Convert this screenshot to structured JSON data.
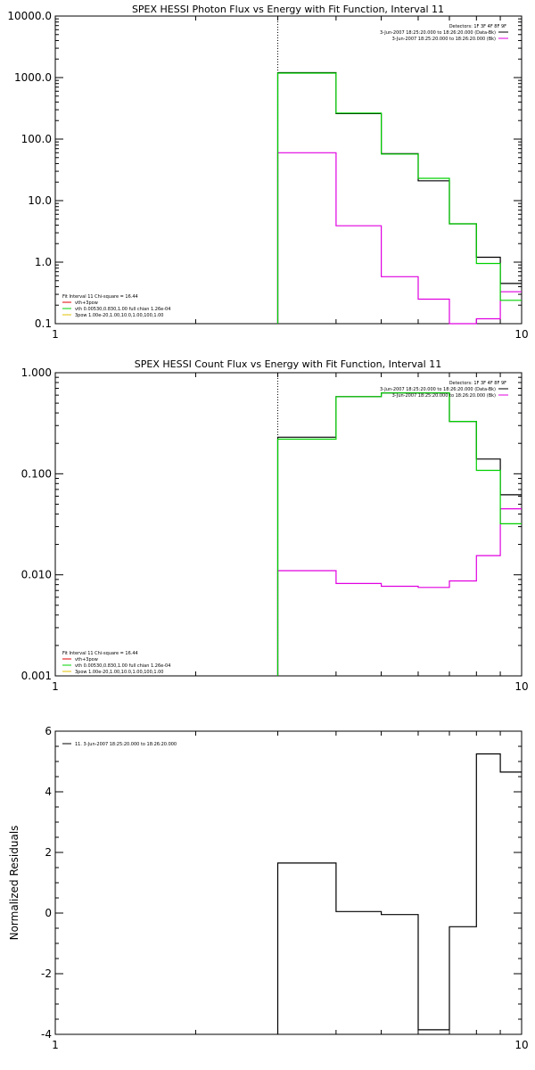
{
  "chart_data": [
    {
      "type": "line",
      "title": "SPEX HESSI Photon Flux vs Energy with Fit Function, Interval 11",
      "xscale": "log",
      "yscale": "log",
      "xlim": [
        1,
        10
      ],
      "ylim": [
        0.1,
        10000
      ],
      "x_ticks": [
        "1",
        "10"
      ],
      "y_ticks": [
        "0.1",
        "1.0",
        "10.0",
        "100.0",
        "1000.0",
        "10000.0"
      ],
      "y_tick_values": [
        0.1,
        1,
        10,
        100,
        1000,
        10000
      ],
      "vline_x": 3.0,
      "legend_right": [
        "Detectors: 1F 3F 4F 8F 9F",
        "3-Jun-2007 18:25:20.000 to 18:26:20.000 (Data-Bk)",
        "3-Jun-2007 18:25:20.000 to 18:26:20.000 (Bk)"
      ],
      "legend_left": [
        "Fit Interval 11   Chi-square = 16.44",
        "vth+3pow",
        "vth 0.00530,0.830,1.00  full chian 1.26e-04",
        "3pow 1.00e-20,1.00,10.0,1.00,100,1.00"
      ],
      "edges": [
        3,
        4,
        5,
        6,
        7,
        8,
        9,
        10
      ],
      "series": [
        {
          "name": "3-Jun-2007 18:25:20.000 to 18:26:20.000 (Data-Bk)",
          "color": "#000000",
          "values": [
            1200,
            260,
            58,
            21,
            4.2,
            1.2,
            0.45
          ]
        },
        {
          "name": "3-Jun-2007 18:25:20.000 to 18:26:20.000 (Bk)",
          "color": "#e000e0",
          "values": [
            60,
            3.9,
            0.58,
            0.25,
            0.1,
            0.12,
            0.33
          ]
        },
        {
          "name": "vth+3pow",
          "color": "#00d000",
          "values": [
            1180,
            265,
            57,
            23,
            4.2,
            0.95,
            0.24
          ]
        }
      ]
    },
    {
      "type": "line",
      "title": "SPEX HESSI Count Flux vs Energy with Fit Function, Interval 11",
      "xscale": "log",
      "yscale": "log",
      "xlim": [
        1,
        10
      ],
      "ylim": [
        0.001,
        1.0
      ],
      "x_ticks": [
        "1",
        "10"
      ],
      "y_ticks": [
        "0.001",
        "0.010",
        "0.100",
        "1.000"
      ],
      "y_tick_values": [
        0.001,
        0.01,
        0.1,
        1.0
      ],
      "vline_x": 3.0,
      "legend_right": [
        "Detectors: 1F 3F 4F 8F 9F",
        "3-Jun-2007 18:25:20.000 to 18:26:20.000 (Data-Bk)",
        "3-Jun-2007 18:25:20.000 to 18:26:20.000 (Bk)"
      ],
      "legend_left": [
        "Fit Interval 11   Chi-square = 16.44",
        "vth+3pow",
        "vth 0.00530,0.830,1.00  full chian 1.26e-04",
        "3pow 1.00e-20,1.00,10.0,1.00,100,1.00"
      ],
      "edges": [
        3,
        4,
        5,
        6,
        7,
        8,
        9,
        10
      ],
      "series": [
        {
          "name": "3-Jun-2007 18:25:20.000 to 18:26:20.000 (Data-Bk)",
          "color": "#000000",
          "values": [
            0.23,
            0.58,
            0.63,
            0.63,
            0.33,
            0.14,
            0.062
          ]
        },
        {
          "name": "3-Jun-2007 18:25:20.000 to 18:26:20.000 (Bk)",
          "color": "#e000e0",
          "values": [
            0.011,
            0.0082,
            0.0077,
            0.0075,
            0.0087,
            0.0155,
            0.045
          ]
        },
        {
          "name": "vth+3pow",
          "color": "#00d000",
          "values": [
            0.22,
            0.58,
            0.63,
            0.63,
            0.33,
            0.108,
            0.032
          ]
        }
      ]
    },
    {
      "type": "line",
      "title": "",
      "ylabel": "Normalized Residuals",
      "xscale": "log",
      "yscale": "linear",
      "xlim": [
        1,
        10
      ],
      "ylim": [
        -4,
        6
      ],
      "x_ticks": [
        "1",
        "10"
      ],
      "y_ticks": [
        "-4",
        "-2",
        "0",
        "2",
        "4",
        "6"
      ],
      "y_tick_values": [
        -4,
        -2,
        0,
        2,
        4,
        6
      ],
      "legend_left": [
        "11.  3-Jun-2007 18:25:20.000 to 18:26:20.000"
      ],
      "edges": [
        3,
        4,
        5,
        6,
        7,
        8,
        9,
        10
      ],
      "series": [
        {
          "name": "11.  3-Jun-2007 18:25:20.000 to 18:26:20.000",
          "color": "#000000",
          "values": [
            1.65,
            0.05,
            -0.05,
            -3.85,
            -0.45,
            5.25,
            4.65
          ]
        }
      ]
    }
  ]
}
